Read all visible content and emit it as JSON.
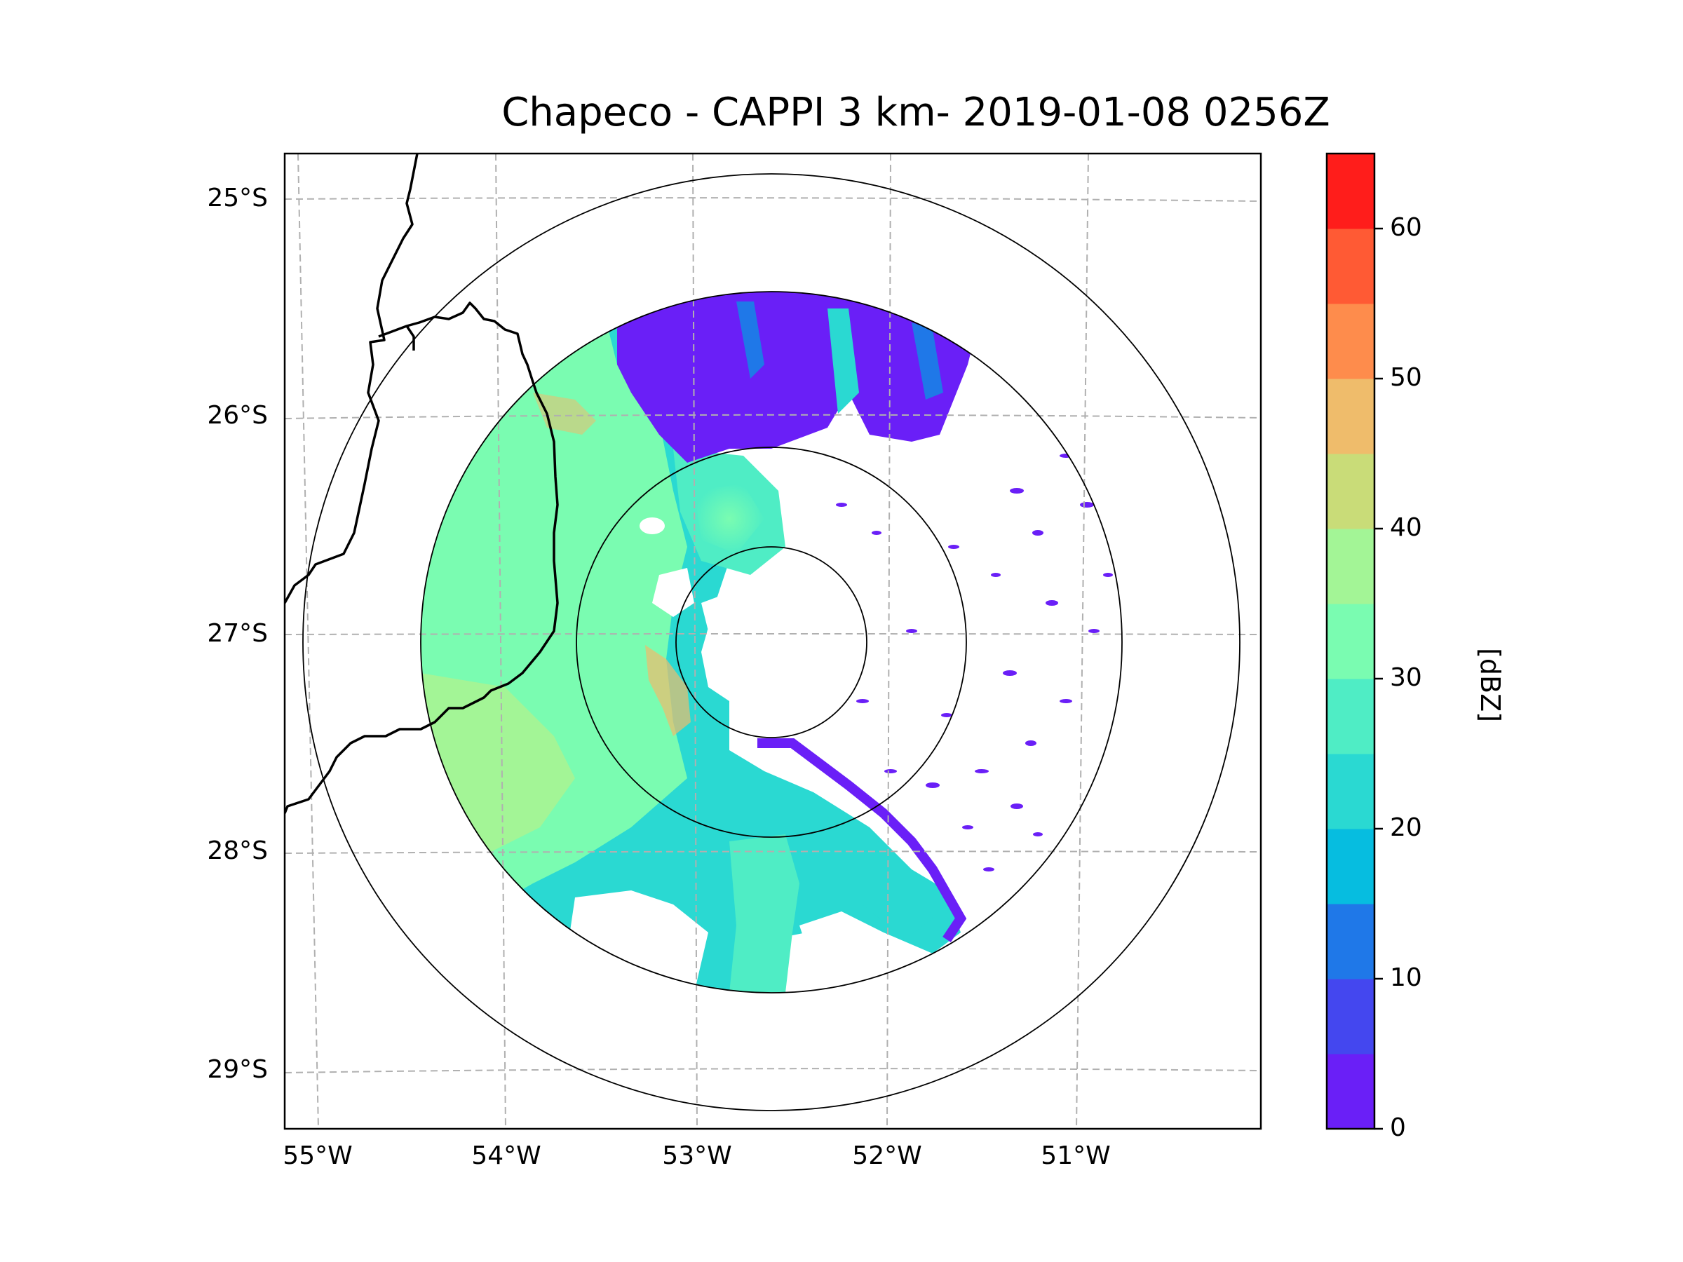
{
  "title": "Chapeco - CAPPI 3 km- 2019-01-08 0256Z",
  "chart_data": {
    "type": "map-radar-cappi",
    "title": "Chapeco - CAPPI 3 km- 2019-01-08 0256Z",
    "radar_site": "Chapeco",
    "product": "CAPPI 3 km",
    "datetime": "2019-01-08 0256Z",
    "lon_ticks": [
      "55°W",
      "54°W",
      "53°W",
      "52°W",
      "51°W"
    ],
    "lat_ticks": [
      "25°S",
      "26°S",
      "27°S",
      "28°S",
      "29°S"
    ],
    "lon_range": [
      -55.2,
      -50.05
    ],
    "lat_range": [
      -29.3,
      -24.8
    ],
    "radar_center": {
      "lon": -52.6,
      "lat": -27.0
    },
    "range_rings": 4,
    "gridlines": true,
    "colorbar": {
      "label": "[dBZ]",
      "min": 0,
      "max": 65,
      "step": 5,
      "ticks": [
        "0",
        "10",
        "20",
        "30",
        "40",
        "50",
        "60"
      ],
      "colors": [
        "#6a1ff7",
        "#4447ef",
        "#1f78e8",
        "#06bde0",
        "#2ad9d2",
        "#4fedc5",
        "#7afcb1",
        "#a3f596",
        "#c9dc78",
        "#efbc6b",
        "#fe8c4c",
        "#ff5a34",
        "#ff1d1b"
      ]
    }
  }
}
